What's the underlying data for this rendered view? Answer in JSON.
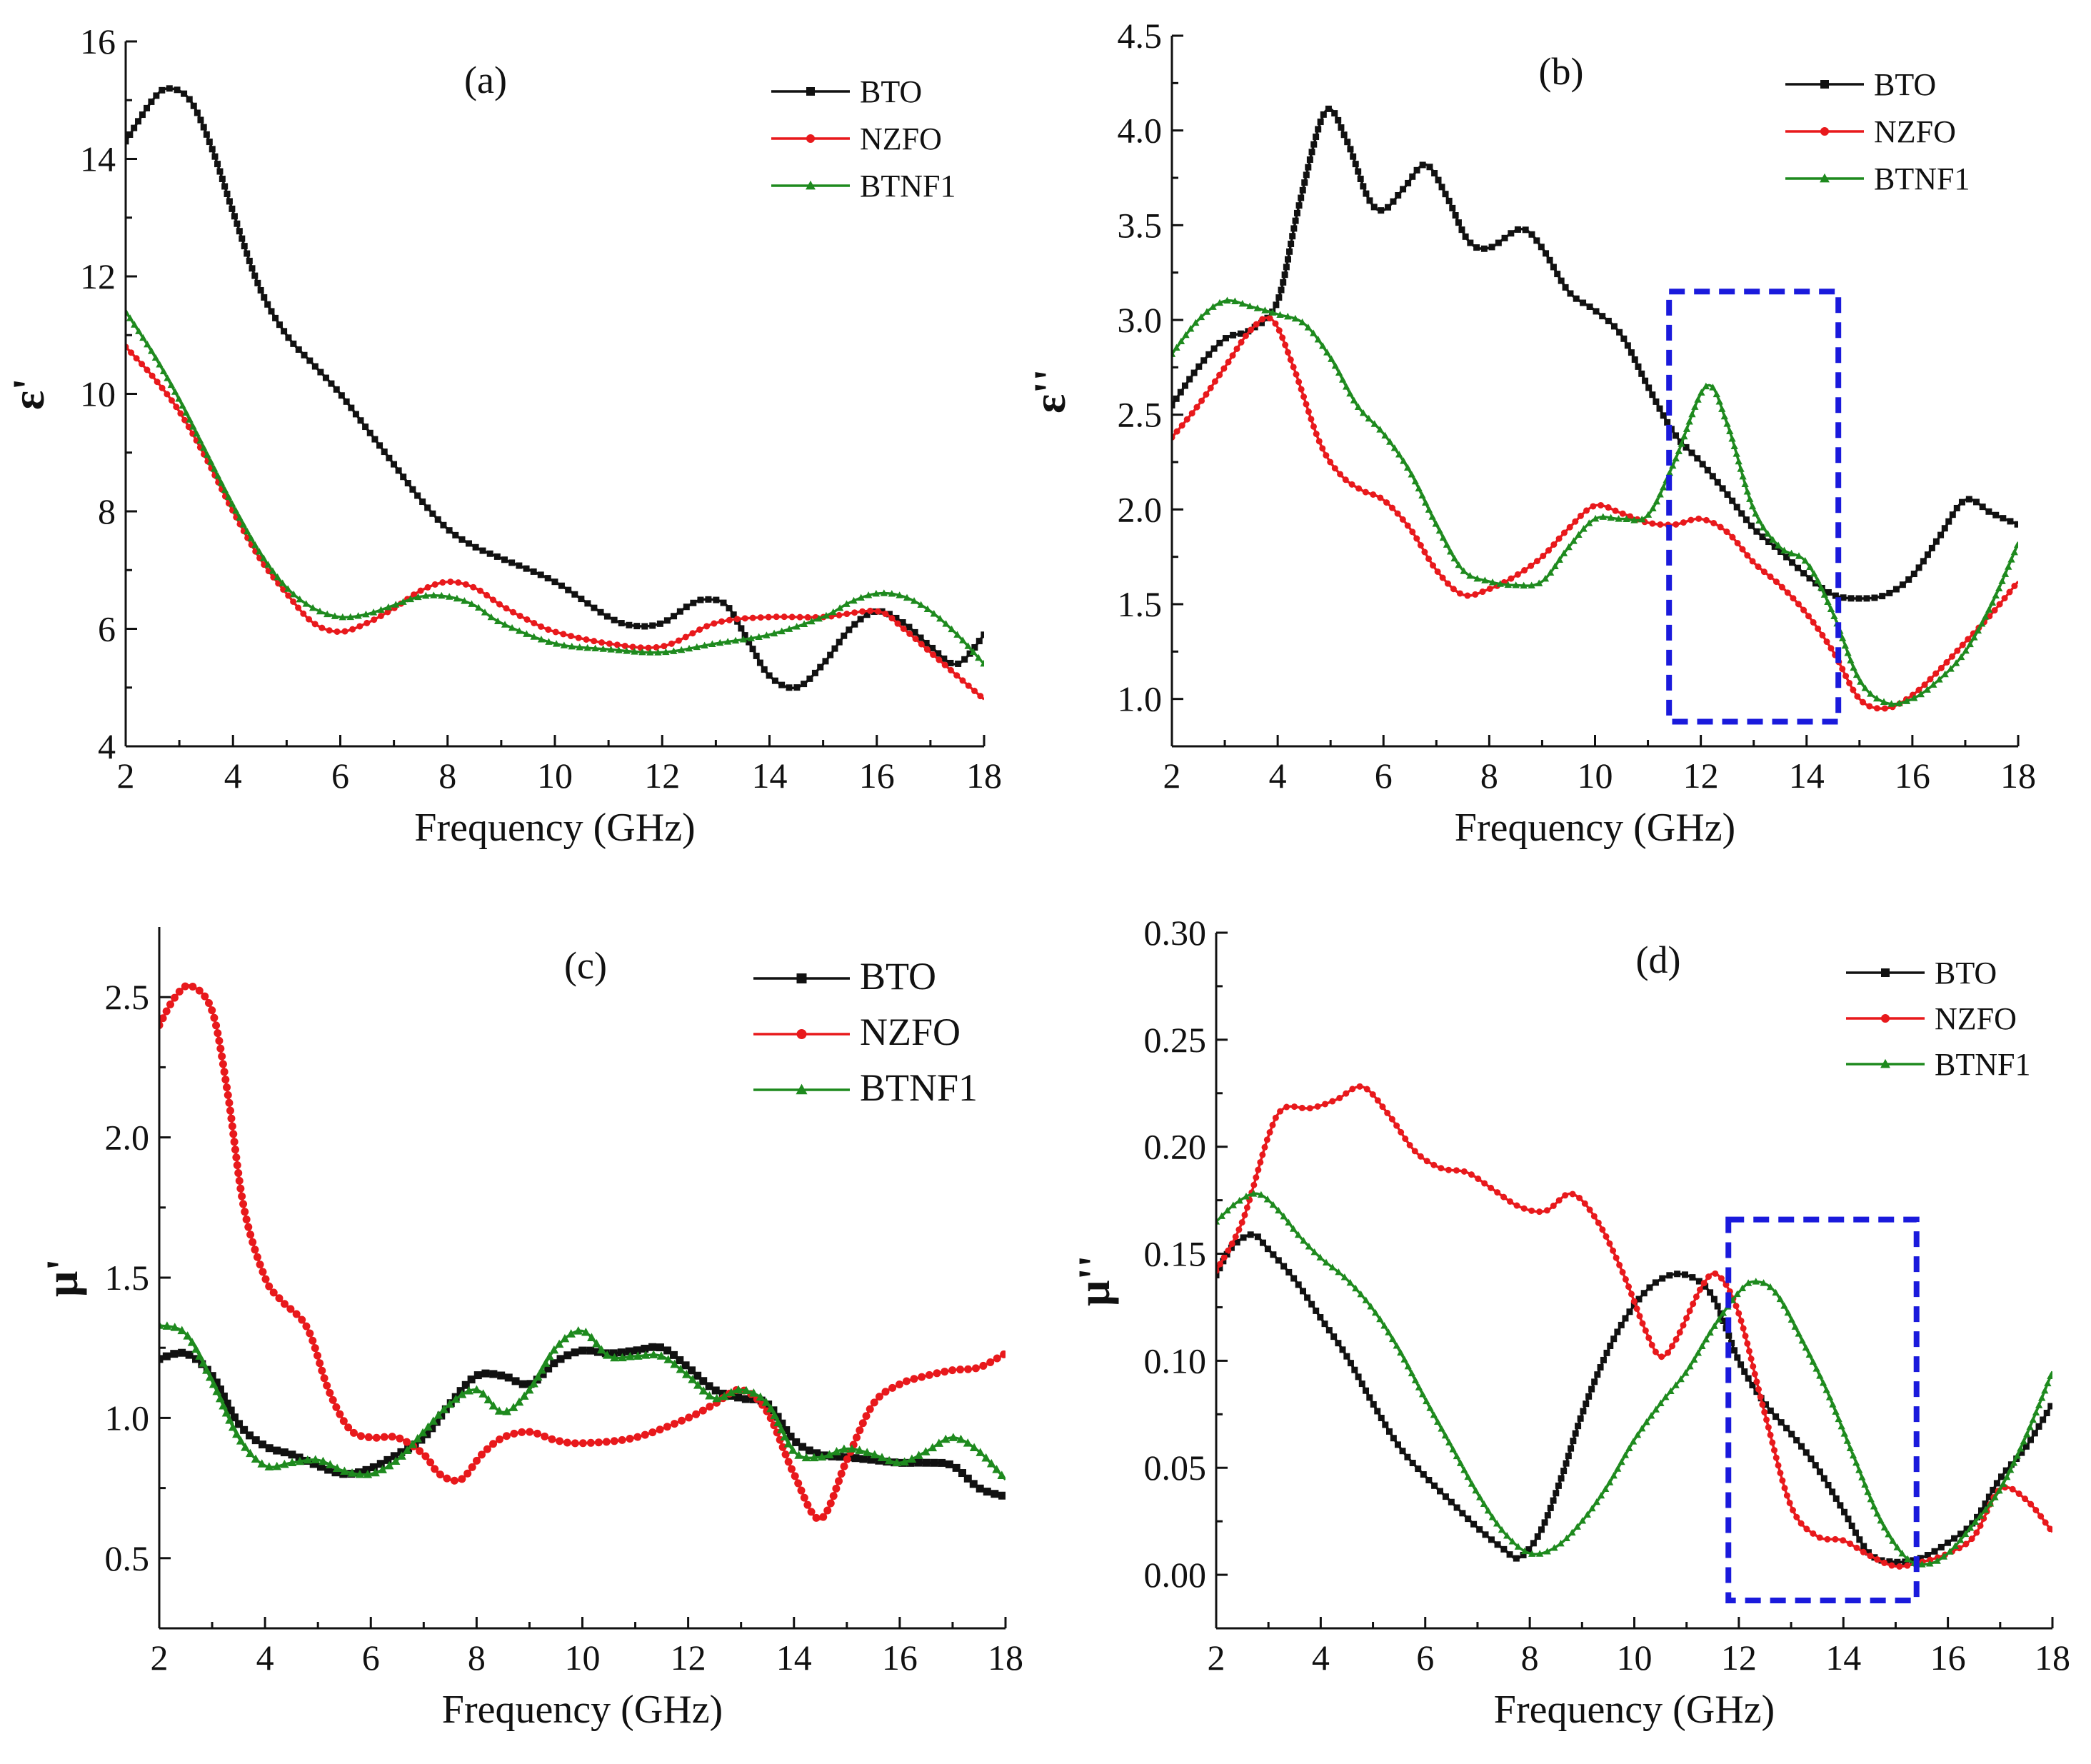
{
  "figure": {
    "colors": {
      "BTO": "#111111",
      "NZFO": "#e8191c",
      "BTNF1": "#1e8a1e",
      "box": "#1a1adc"
    }
  },
  "chart_data": [
    {
      "type": "line",
      "panel_label": "(a)",
      "title": "",
      "xlabel": "Frequency (GHz)",
      "ylabel": "ε'",
      "xlim": [
        2,
        18
      ],
      "ylim": [
        4,
        16
      ],
      "xticks": [
        2,
        4,
        6,
        8,
        10,
        12,
        14,
        16,
        18
      ],
      "yticks": [
        4,
        6,
        8,
        10,
        12,
        14,
        16
      ],
      "ytick_labels": [
        "4",
        "6",
        "8",
        "10",
        "12",
        "14",
        "16"
      ],
      "legend_position": "top-right",
      "highlight_box": null,
      "series": [
        {
          "name": "BTO",
          "marker": "square",
          "x": [
            2,
            2.5,
            2.8,
            3.2,
            3.6,
            4,
            4.5,
            5,
            5.5,
            6,
            6.5,
            7,
            7.5,
            8,
            8.5,
            9,
            10,
            11,
            11.5,
            12,
            12.5,
            12.8,
            13.2,
            13.6,
            14,
            14.5,
            15,
            15.5,
            16,
            16.5,
            17,
            17.5,
            18
          ],
          "y": [
            14.3,
            15.0,
            15.2,
            15.0,
            14.2,
            13.1,
            11.8,
            11.0,
            10.5,
            10.0,
            9.4,
            8.8,
            8.2,
            7.7,
            7.4,
            7.2,
            6.8,
            6.2,
            6.05,
            6.1,
            6.4,
            6.5,
            6.4,
            5.8,
            5.2,
            5.0,
            5.4,
            6.0,
            6.3,
            6.1,
            5.7,
            5.4,
            5.9
          ]
        },
        {
          "name": "NZFO",
          "marker": "circle",
          "x": [
            2,
            2.5,
            3,
            3.5,
            4,
            4.5,
            5,
            5.5,
            6,
            6.5,
            7,
            7.5,
            8,
            8.5,
            9,
            9.5,
            10,
            11,
            12,
            13,
            14,
            15,
            16,
            16.5,
            17,
            17.5,
            18
          ],
          "y": [
            10.8,
            10.3,
            9.7,
            8.9,
            8.0,
            7.2,
            6.6,
            6.1,
            5.95,
            6.1,
            6.35,
            6.65,
            6.8,
            6.7,
            6.4,
            6.15,
            5.95,
            5.75,
            5.7,
            6.1,
            6.2,
            6.2,
            6.3,
            6.0,
            5.6,
            5.2,
            4.8
          ]
        },
        {
          "name": "BTNF1",
          "marker": "triangle",
          "x": [
            2,
            2.5,
            3,
            3.5,
            4,
            4.5,
            5,
            5.5,
            6,
            6.5,
            7,
            7.5,
            8,
            8.5,
            9,
            10,
            11,
            12,
            13,
            14,
            15,
            15.5,
            16,
            16.5,
            17,
            17.5,
            18
          ],
          "y": [
            11.4,
            10.7,
            9.9,
            9.0,
            8.1,
            7.3,
            6.7,
            6.35,
            6.2,
            6.25,
            6.4,
            6.55,
            6.55,
            6.4,
            6.1,
            5.75,
            5.65,
            5.6,
            5.75,
            5.9,
            6.2,
            6.45,
            6.6,
            6.55,
            6.3,
            5.9,
            5.4
          ]
        }
      ]
    },
    {
      "type": "line",
      "panel_label": "(b)",
      "title": "",
      "xlabel": "Frequency (GHz)",
      "ylabel": "ε''",
      "xlim": [
        2,
        18
      ],
      "ylim": [
        0.75,
        4.5
      ],
      "xticks": [
        2,
        4,
        6,
        8,
        10,
        12,
        14,
        16,
        18
      ],
      "yticks": [
        1.0,
        1.5,
        2.0,
        2.5,
        3.0,
        3.5,
        4.0,
        4.5
      ],
      "ytick_labels": [
        "1.0",
        "1.5",
        "2.0",
        "2.5",
        "3.0",
        "3.5",
        "4.0",
        "4.5"
      ],
      "legend_position": "top-right",
      "highlight_box": {
        "x": [
          11.4,
          14.6
        ],
        "y": [
          0.88,
          3.15
        ]
      },
      "series": [
        {
          "name": "BTO",
          "marker": "square",
          "x": [
            2,
            2.5,
            3,
            3.5,
            4,
            4.4,
            4.9,
            5.3,
            5.7,
            6,
            6.4,
            6.8,
            7.2,
            7.6,
            8,
            8.6,
            9,
            9.5,
            10,
            10.5,
            11,
            11.5,
            12,
            12.5,
            13,
            13.5,
            14,
            14.5,
            15,
            15.5,
            16,
            16.5,
            17,
            17.5,
            18
          ],
          "y": [
            2.55,
            2.75,
            2.9,
            2.95,
            3.1,
            3.6,
            4.1,
            3.95,
            3.65,
            3.58,
            3.7,
            3.82,
            3.65,
            3.42,
            3.38,
            3.48,
            3.38,
            3.15,
            3.05,
            2.92,
            2.65,
            2.4,
            2.25,
            2.08,
            1.9,
            1.78,
            1.65,
            1.55,
            1.53,
            1.55,
            1.65,
            1.85,
            2.05,
            1.98,
            1.92
          ]
        },
        {
          "name": "NZFO",
          "marker": "circle",
          "x": [
            2,
            2.5,
            3,
            3.5,
            3.9,
            4.3,
            4.8,
            5.2,
            5.6,
            6,
            6.5,
            7,
            7.5,
            8,
            8.5,
            9,
            9.5,
            10,
            10.5,
            11,
            11.5,
            12,
            12.5,
            13,
            13.5,
            14,
            14.5,
            15,
            15.5,
            16,
            16.5,
            17,
            17.5,
            18
          ],
          "y": [
            2.38,
            2.55,
            2.75,
            2.95,
            3.0,
            2.75,
            2.35,
            2.18,
            2.1,
            2.05,
            1.9,
            1.68,
            1.55,
            1.58,
            1.65,
            1.75,
            1.9,
            2.02,
            1.98,
            1.93,
            1.92,
            1.95,
            1.88,
            1.72,
            1.6,
            1.45,
            1.25,
            1.0,
            0.95,
            1.02,
            1.15,
            1.3,
            1.45,
            1.62
          ]
        },
        {
          "name": "BTNF1",
          "marker": "triangle",
          "x": [
            2,
            2.5,
            3,
            3.5,
            4,
            4.5,
            5,
            5.5,
            6,
            6.5,
            7,
            7.5,
            8,
            8.5,
            9,
            9.5,
            10,
            10.5,
            11,
            11.5,
            12.1,
            12.5,
            13,
            13.5,
            14,
            14.5,
            15,
            15.5,
            16,
            16.5,
            17,
            17.5,
            18
          ],
          "y": [
            2.82,
            3.0,
            3.1,
            3.07,
            3.03,
            2.98,
            2.8,
            2.55,
            2.4,
            2.2,
            1.92,
            1.68,
            1.62,
            1.6,
            1.62,
            1.8,
            1.95,
            1.95,
            1.97,
            2.25,
            2.65,
            2.45,
            2.0,
            1.8,
            1.72,
            1.45,
            1.1,
            0.98,
            1.0,
            1.1,
            1.25,
            1.5,
            1.82
          ]
        }
      ]
    },
    {
      "type": "line",
      "panel_label": "(c)",
      "title": "",
      "xlabel": "Frequency (GHz)",
      "ylabel": "μ'",
      "xlim": [
        2,
        18
      ],
      "ylim": [
        0.25,
        2.75
      ],
      "xticks": [
        2,
        4,
        6,
        8,
        10,
        12,
        14,
        16,
        18
      ],
      "yticks": [
        0.5,
        1.0,
        1.5,
        2.0,
        2.5
      ],
      "ytick_labels": [
        "0.5",
        "1.0",
        "1.5",
        "2.0",
        "2.5"
      ],
      "legend_position": "top-right",
      "highlight_box": null,
      "series": [
        {
          "name": "BTO",
          "marker": "square",
          "x": [
            2,
            2.5,
            3,
            3.5,
            4,
            4.5,
            5,
            5.5,
            6,
            6.5,
            7,
            7.5,
            8,
            8.5,
            9,
            9.5,
            10,
            10.5,
            11,
            11.5,
            12,
            12.5,
            13,
            13.5,
            14,
            14.5,
            15,
            15.5,
            16,
            16.5,
            17,
            17.5,
            18
          ],
          "y": [
            1.21,
            1.23,
            1.15,
            0.98,
            0.9,
            0.87,
            0.83,
            0.8,
            0.82,
            0.87,
            0.93,
            1.05,
            1.15,
            1.15,
            1.12,
            1.2,
            1.24,
            1.23,
            1.24,
            1.25,
            1.18,
            1.1,
            1.07,
            1.05,
            0.92,
            0.87,
            0.86,
            0.85,
            0.84,
            0.84,
            0.83,
            0.75,
            0.72
          ]
        },
        {
          "name": "NZFO",
          "marker": "circle",
          "x": [
            2,
            2.3,
            2.6,
            3,
            3.3,
            3.6,
            4,
            4.3,
            4.8,
            5.2,
            5.6,
            6,
            6.5,
            7,
            7.3,
            7.7,
            8.1,
            8.5,
            9,
            9.5,
            10,
            11,
            12,
            12.5,
            13,
            13.5,
            14,
            14.5,
            15,
            15.5,
            16,
            16.5,
            17,
            17.5,
            18
          ],
          "y": [
            2.4,
            2.5,
            2.54,
            2.45,
            2.15,
            1.75,
            1.5,
            1.42,
            1.32,
            1.1,
            0.96,
            0.93,
            0.93,
            0.87,
            0.8,
            0.78,
            0.87,
            0.93,
            0.95,
            0.92,
            0.91,
            0.93,
            1.0,
            1.05,
            1.1,
            1.02,
            0.8,
            0.64,
            0.85,
            1.05,
            1.12,
            1.15,
            1.17,
            1.18,
            1.23
          ]
        },
        {
          "name": "BTNF1",
          "marker": "triangle",
          "x": [
            2,
            2.5,
            3,
            3.5,
            4,
            4.5,
            5,
            5.5,
            6,
            6.5,
            7,
            7.5,
            8,
            8.5,
            9,
            9.5,
            10,
            10.5,
            11,
            11.5,
            12,
            12.5,
            13,
            13.5,
            14,
            14.5,
            15,
            15.5,
            16,
            16.5,
            17,
            17.5,
            18
          ],
          "y": [
            1.33,
            1.3,
            1.13,
            0.93,
            0.83,
            0.84,
            0.85,
            0.81,
            0.8,
            0.85,
            0.95,
            1.05,
            1.1,
            1.02,
            1.1,
            1.25,
            1.31,
            1.22,
            1.22,
            1.22,
            1.15,
            1.07,
            1.1,
            1.05,
            0.88,
            0.86,
            0.89,
            0.87,
            0.84,
            0.88,
            0.93,
            0.88,
            0.78
          ]
        }
      ]
    },
    {
      "type": "line",
      "panel_label": "(d)",
      "title": "",
      "xlabel": "Frequency (GHz)",
      "ylabel": "μ''",
      "xlim": [
        2,
        18
      ],
      "ylim": [
        -0.025,
        0.3
      ],
      "xticks": [
        2,
        4,
        6,
        8,
        10,
        12,
        14,
        16,
        18
      ],
      "yticks": [
        0.0,
        0.05,
        0.1,
        0.15,
        0.2,
        0.25,
        0.3
      ],
      "ytick_labels": [
        "0.00",
        "0.05",
        "0.10",
        "0.15",
        "0.20",
        "0.25",
        "0.30"
      ],
      "legend_position": "top-right",
      "highlight_box": {
        "x": [
          11.8,
          15.4
        ],
        "y": [
          -0.012,
          0.166
        ]
      },
      "series": [
        {
          "name": "BTO",
          "marker": "square",
          "x": [
            2,
            2.3,
            2.7,
            3,
            3.5,
            4,
            4.5,
            5,
            5.5,
            6,
            6.5,
            7,
            7.5,
            7.8,
            8.2,
            8.6,
            9,
            9.5,
            10,
            10.5,
            11,
            11.5,
            12,
            12.5,
            13,
            13.5,
            14,
            14.5,
            15,
            15.5,
            16,
            16.5,
            17,
            17.5,
            18
          ],
          "y": [
            0.14,
            0.153,
            0.159,
            0.152,
            0.138,
            0.12,
            0.102,
            0.08,
            0.06,
            0.046,
            0.034,
            0.022,
            0.012,
            0.008,
            0.02,
            0.045,
            0.075,
            0.105,
            0.126,
            0.138,
            0.14,
            0.13,
            0.1,
            0.08,
            0.066,
            0.05,
            0.03,
            0.01,
            0.006,
            0.008,
            0.015,
            0.025,
            0.045,
            0.06,
            0.08
          ]
        },
        {
          "name": "NZFO",
          "marker": "circle",
          "x": [
            2,
            2.5,
            3,
            3.3,
            3.8,
            4.3,
            4.8,
            5.3,
            5.8,
            6.3,
            6.8,
            7.3,
            7.8,
            8.3,
            8.8,
            9.3,
            9.8,
            10.2,
            10.5,
            10.8,
            11.3,
            11.6,
            12,
            12.5,
            13,
            13.5,
            14,
            14.5,
            15,
            15.5,
            16,
            16.5,
            17,
            17.5,
            18
          ],
          "y": [
            0.142,
            0.165,
            0.205,
            0.218,
            0.218,
            0.222,
            0.228,
            0.215,
            0.198,
            0.19,
            0.188,
            0.18,
            0.172,
            0.17,
            0.178,
            0.165,
            0.14,
            0.115,
            0.102,
            0.11,
            0.135,
            0.14,
            0.122,
            0.075,
            0.032,
            0.018,
            0.016,
            0.009,
            0.004,
            0.006,
            0.01,
            0.018,
            0.04,
            0.035,
            0.02
          ]
        },
        {
          "name": "BTNF1",
          "marker": "triangle",
          "x": [
            2,
            2.4,
            2.8,
            3.2,
            3.6,
            4,
            4.5,
            5,
            5.5,
            6,
            6.5,
            7,
            7.5,
            8,
            8.5,
            9,
            9.5,
            10,
            10.5,
            11,
            11.5,
            12,
            12.3,
            12.7,
            13.2,
            13.7,
            14.2,
            14.7,
            15.2,
            15.6,
            16,
            16.5,
            17,
            17.5,
            18
          ],
          "y": [
            0.165,
            0.174,
            0.178,
            0.17,
            0.158,
            0.148,
            0.138,
            0.124,
            0.105,
            0.082,
            0.06,
            0.038,
            0.02,
            0.01,
            0.013,
            0.025,
            0.042,
            0.063,
            0.08,
            0.095,
            0.115,
            0.132,
            0.137,
            0.132,
            0.11,
            0.085,
            0.055,
            0.026,
            0.008,
            0.005,
            0.01,
            0.024,
            0.04,
            0.065,
            0.095
          ]
        }
      ]
    }
  ]
}
